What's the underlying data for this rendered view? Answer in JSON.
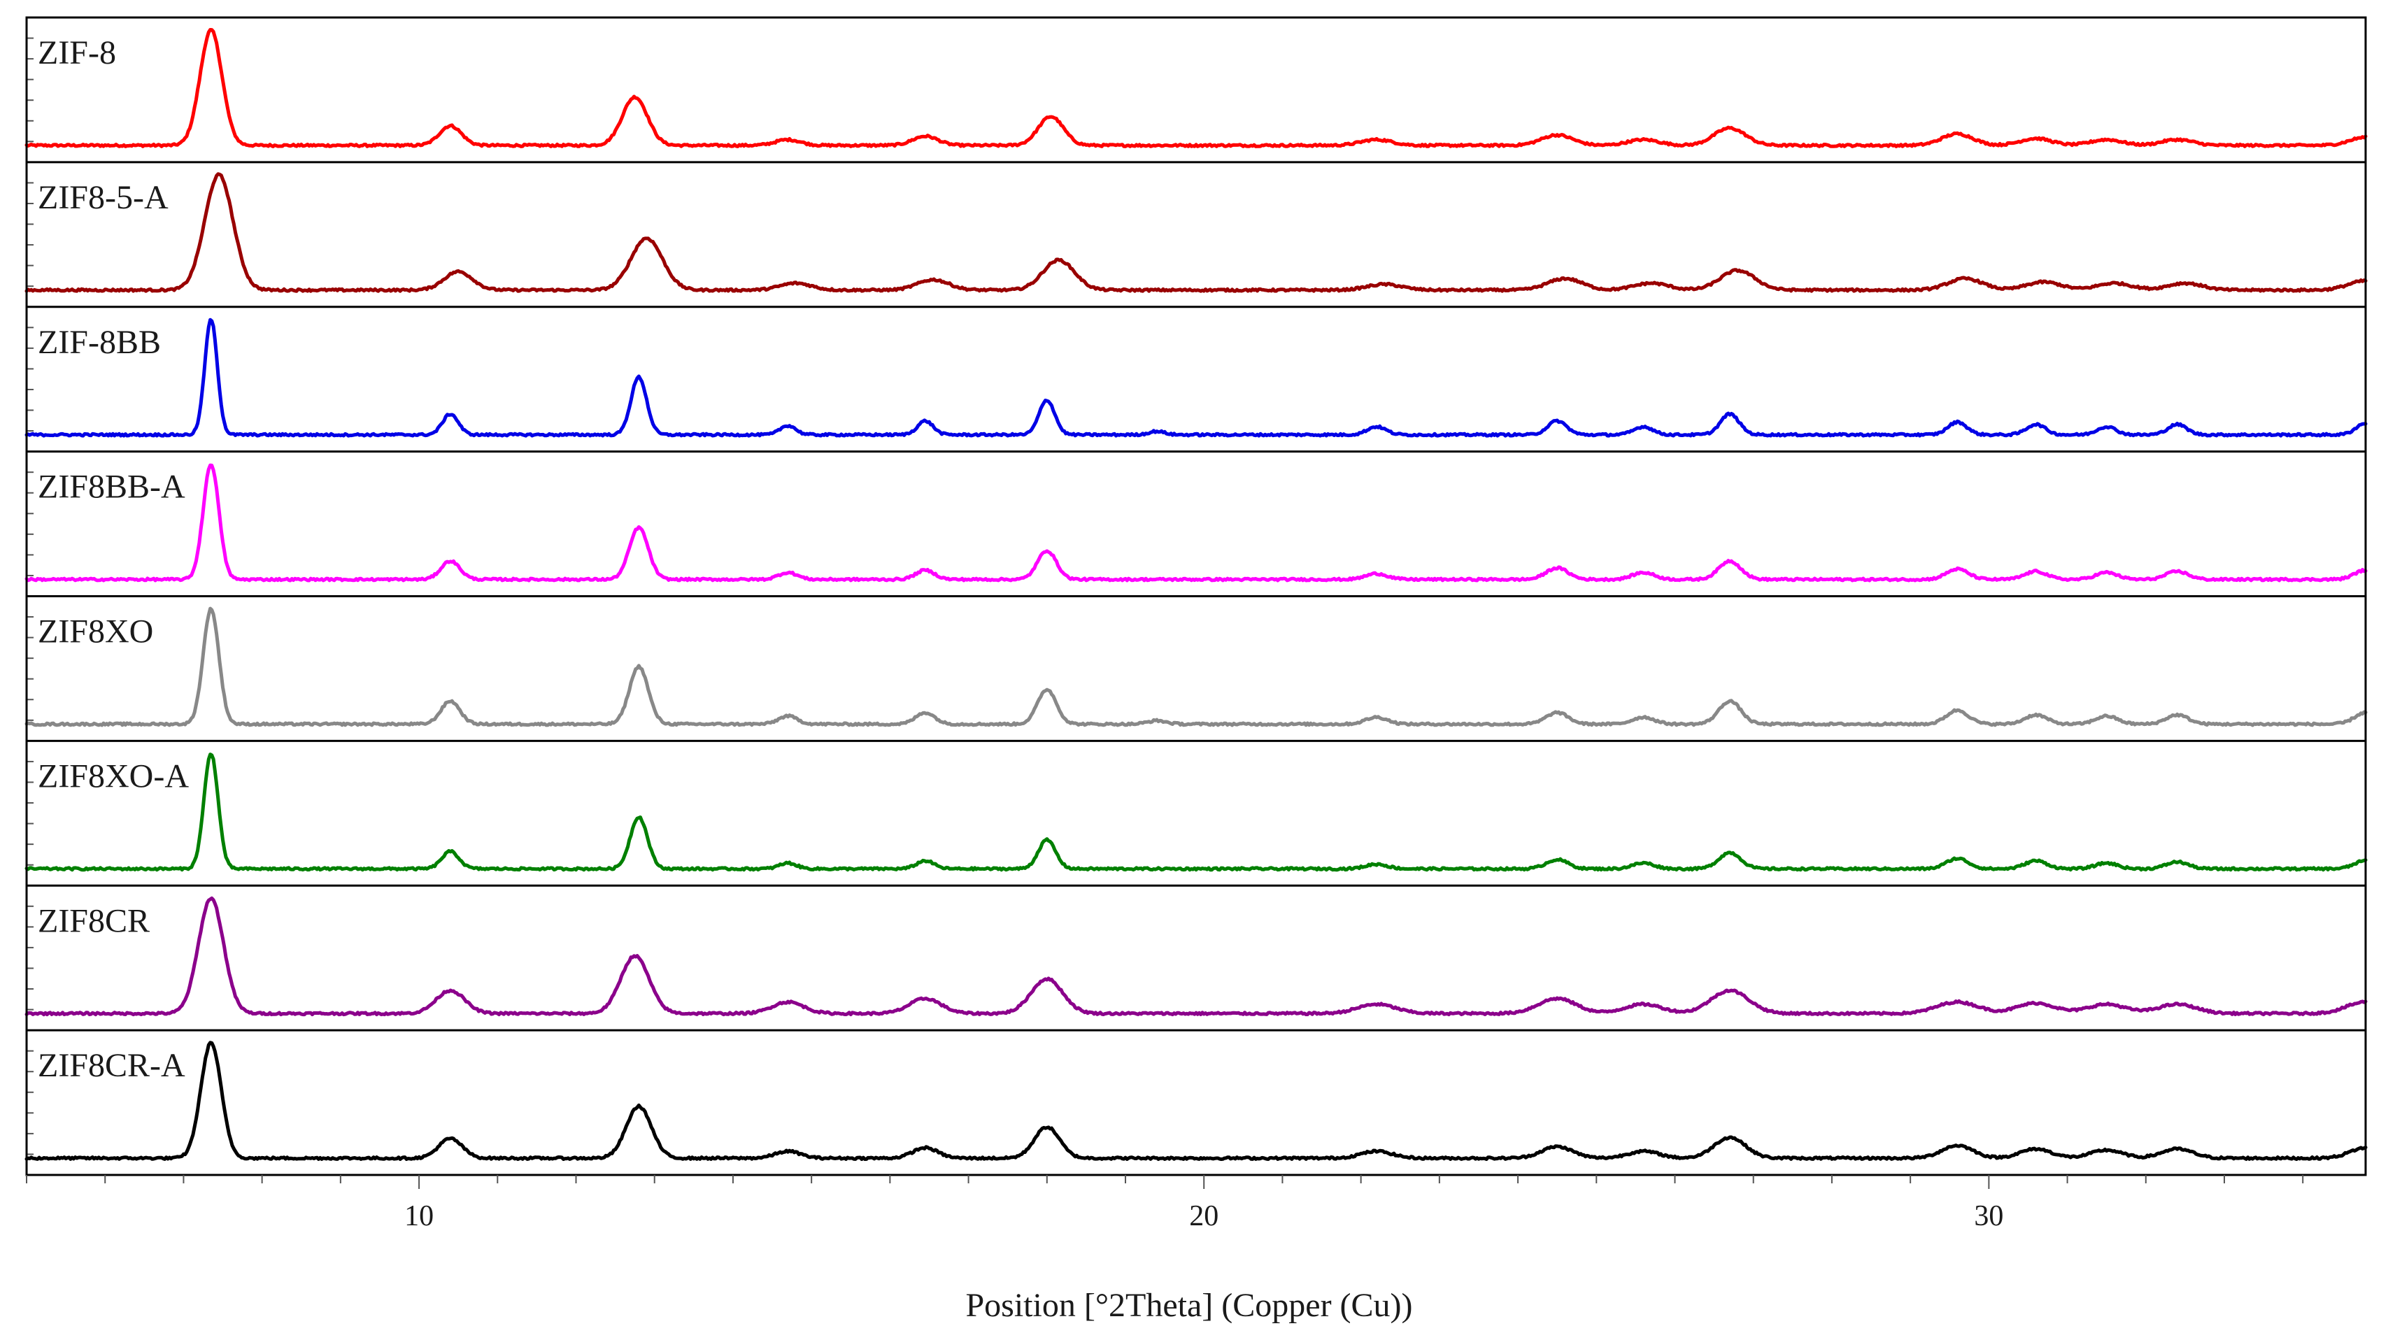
{
  "chart_data": {
    "type": "line",
    "title": "",
    "xlabel": "Position [°2Theta] (Copper (Cu))",
    "ylabel": "",
    "xlim": [
      5,
      34.8
    ],
    "xticks": [
      10,
      20,
      30
    ],
    "xtick_labels": [
      "10",
      "20",
      "30"
    ],
    "grid": false,
    "layout": "stacked-panels",
    "series": [
      {
        "name": "ZIF-8",
        "color": "#ff0000",
        "peaks": [
          [
            7.35,
            1.0,
            0.14
          ],
          [
            10.4,
            0.17,
            0.14
          ],
          [
            12.75,
            0.42,
            0.16
          ],
          [
            14.7,
            0.05,
            0.16
          ],
          [
            16.45,
            0.08,
            0.16
          ],
          [
            18.05,
            0.25,
            0.16
          ],
          [
            22.2,
            0.05,
            0.2
          ],
          [
            24.5,
            0.09,
            0.2
          ],
          [
            25.6,
            0.05,
            0.2
          ],
          [
            26.7,
            0.15,
            0.2
          ],
          [
            29.6,
            0.1,
            0.2
          ],
          [
            30.6,
            0.06,
            0.2
          ],
          [
            31.5,
            0.05,
            0.2
          ],
          [
            32.4,
            0.05,
            0.2
          ],
          [
            34.8,
            0.07,
            0.2
          ]
        ]
      },
      {
        "name": "ZIF8-5-A",
        "color": "#990000",
        "peaks": [
          [
            7.45,
            1.0,
            0.18
          ],
          [
            10.5,
            0.16,
            0.18
          ],
          [
            12.9,
            0.45,
            0.2
          ],
          [
            14.8,
            0.06,
            0.2
          ],
          [
            16.55,
            0.09,
            0.2
          ],
          [
            18.15,
            0.26,
            0.2
          ],
          [
            22.3,
            0.05,
            0.22
          ],
          [
            24.6,
            0.1,
            0.22
          ],
          [
            25.7,
            0.06,
            0.22
          ],
          [
            26.8,
            0.17,
            0.22
          ],
          [
            29.7,
            0.1,
            0.22
          ],
          [
            30.7,
            0.07,
            0.22
          ],
          [
            31.6,
            0.06,
            0.22
          ],
          [
            32.5,
            0.06,
            0.22
          ],
          [
            34.8,
            0.08,
            0.22
          ]
        ]
      },
      {
        "name": "ZIF-8BB",
        "color": "#0000e6",
        "peaks": [
          [
            7.35,
            1.0,
            0.08
          ],
          [
            10.4,
            0.18,
            0.1
          ],
          [
            12.8,
            0.5,
            0.1
          ],
          [
            14.7,
            0.08,
            0.1
          ],
          [
            16.45,
            0.12,
            0.1
          ],
          [
            18.0,
            0.3,
            0.1
          ],
          [
            19.4,
            0.03,
            0.1
          ],
          [
            22.2,
            0.07,
            0.12
          ],
          [
            24.5,
            0.12,
            0.12
          ],
          [
            25.6,
            0.07,
            0.12
          ],
          [
            26.7,
            0.18,
            0.12
          ],
          [
            29.6,
            0.11,
            0.12
          ],
          [
            30.6,
            0.09,
            0.12
          ],
          [
            31.5,
            0.07,
            0.12
          ],
          [
            32.4,
            0.09,
            0.12
          ],
          [
            34.8,
            0.1,
            0.12
          ]
        ]
      },
      {
        "name": "ZIF8BB-A",
        "color": "#ff00ff",
        "peaks": [
          [
            7.35,
            1.0,
            0.1
          ],
          [
            10.4,
            0.16,
            0.12
          ],
          [
            12.8,
            0.45,
            0.12
          ],
          [
            14.7,
            0.06,
            0.12
          ],
          [
            16.45,
            0.08,
            0.12
          ],
          [
            18.0,
            0.25,
            0.12
          ],
          [
            22.2,
            0.05,
            0.14
          ],
          [
            24.5,
            0.1,
            0.14
          ],
          [
            25.6,
            0.06,
            0.14
          ],
          [
            26.7,
            0.16,
            0.14
          ],
          [
            29.6,
            0.09,
            0.14
          ],
          [
            30.6,
            0.07,
            0.14
          ],
          [
            31.5,
            0.06,
            0.14
          ],
          [
            32.4,
            0.07,
            0.14
          ],
          [
            34.8,
            0.08,
            0.14
          ]
        ]
      },
      {
        "name": "ZIF8XO",
        "color": "#888888",
        "peaks": [
          [
            7.35,
            1.0,
            0.1
          ],
          [
            10.4,
            0.2,
            0.12
          ],
          [
            12.8,
            0.5,
            0.12
          ],
          [
            14.7,
            0.07,
            0.12
          ],
          [
            16.45,
            0.1,
            0.12
          ],
          [
            18.0,
            0.3,
            0.12
          ],
          [
            19.4,
            0.03,
            0.12
          ],
          [
            22.2,
            0.06,
            0.14
          ],
          [
            24.5,
            0.1,
            0.14
          ],
          [
            25.6,
            0.06,
            0.14
          ],
          [
            26.7,
            0.2,
            0.14
          ],
          [
            29.6,
            0.12,
            0.14
          ],
          [
            30.6,
            0.08,
            0.14
          ],
          [
            31.5,
            0.07,
            0.14
          ],
          [
            32.4,
            0.08,
            0.14
          ],
          [
            34.8,
            0.1,
            0.14
          ]
        ]
      },
      {
        "name": "ZIF8XO-A",
        "color": "#008000",
        "peaks": [
          [
            7.35,
            1.0,
            0.09
          ],
          [
            10.4,
            0.15,
            0.11
          ],
          [
            12.8,
            0.45,
            0.11
          ],
          [
            14.7,
            0.05,
            0.11
          ],
          [
            16.45,
            0.07,
            0.11
          ],
          [
            18.0,
            0.25,
            0.11
          ],
          [
            22.2,
            0.04,
            0.14
          ],
          [
            24.5,
            0.08,
            0.14
          ],
          [
            25.6,
            0.05,
            0.14
          ],
          [
            26.7,
            0.14,
            0.14
          ],
          [
            29.6,
            0.09,
            0.14
          ],
          [
            30.6,
            0.07,
            0.14
          ],
          [
            31.5,
            0.05,
            0.14
          ],
          [
            32.4,
            0.06,
            0.14
          ],
          [
            34.8,
            0.07,
            0.14
          ]
        ]
      },
      {
        "name": "ZIF8CR",
        "color": "#8b008b",
        "peaks": [
          [
            7.35,
            1.0,
            0.16
          ],
          [
            10.4,
            0.2,
            0.18
          ],
          [
            12.75,
            0.5,
            0.18
          ],
          [
            14.7,
            0.1,
            0.2
          ],
          [
            16.45,
            0.13,
            0.2
          ],
          [
            18.0,
            0.3,
            0.2
          ],
          [
            22.2,
            0.08,
            0.24
          ],
          [
            24.5,
            0.13,
            0.24
          ],
          [
            25.6,
            0.08,
            0.24
          ],
          [
            26.7,
            0.2,
            0.24
          ],
          [
            29.6,
            0.1,
            0.26
          ],
          [
            30.6,
            0.09,
            0.24
          ],
          [
            31.5,
            0.08,
            0.24
          ],
          [
            32.4,
            0.08,
            0.24
          ],
          [
            34.8,
            0.1,
            0.24
          ]
        ]
      },
      {
        "name": "ZIF8CR-A",
        "color": "#000000",
        "peaks": [
          [
            7.35,
            1.0,
            0.13
          ],
          [
            10.4,
            0.17,
            0.15
          ],
          [
            12.8,
            0.45,
            0.16
          ],
          [
            14.7,
            0.06,
            0.16
          ],
          [
            16.45,
            0.09,
            0.16
          ],
          [
            18.0,
            0.27,
            0.16
          ],
          [
            22.2,
            0.06,
            0.2
          ],
          [
            24.5,
            0.1,
            0.2
          ],
          [
            25.6,
            0.06,
            0.2
          ],
          [
            26.7,
            0.18,
            0.2
          ],
          [
            29.6,
            0.11,
            0.2
          ],
          [
            30.6,
            0.08,
            0.2
          ],
          [
            31.5,
            0.07,
            0.2
          ],
          [
            32.4,
            0.08,
            0.2
          ],
          [
            34.8,
            0.09,
            0.2
          ]
        ]
      }
    ]
  }
}
